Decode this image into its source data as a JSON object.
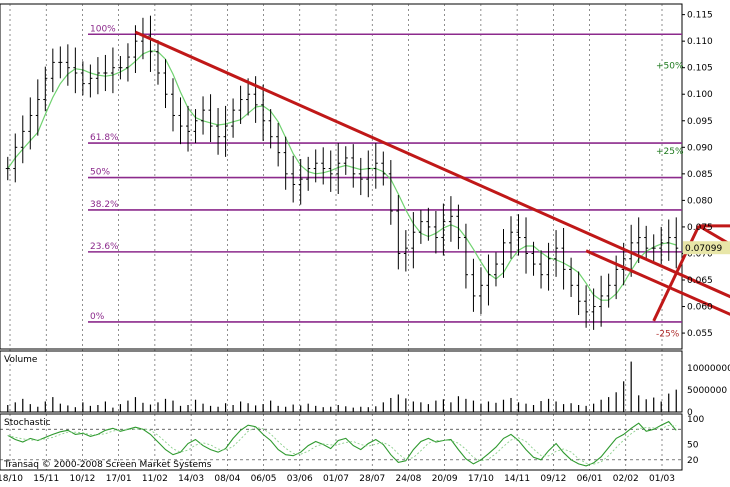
{
  "chart_data": [
    {
      "type": "ohlc",
      "panel": "price",
      "y_ticks": [
        "0.055",
        "0.060",
        "0.065",
        "0.070",
        "0.075",
        "0.080",
        "0.085",
        "0.090",
        "0.095",
        "0.100",
        "0.105",
        "0.110",
        "0.115"
      ],
      "ylim": [
        0.052,
        0.117
      ],
      "last_price_label": "0.07099",
      "last_price": 0.07099,
      "fib_levels": [
        {
          "label": "100%",
          "value": 0.1113
        },
        {
          "label": "61.8%",
          "value": 0.0908
        },
        {
          "label": "50%",
          "value": 0.0843
        },
        {
          "label": "38.2%",
          "value": 0.0782
        },
        {
          "label": "23.6%",
          "value": 0.0703
        },
        {
          "label": "0%",
          "value": 0.0571
        }
      ],
      "target_levels": [
        {
          "label": "+50%",
          "value": 0.1054
        },
        {
          "label": "+25%",
          "value": 0.0893
        },
        {
          "label": "-25%",
          "value": 0.0549
        }
      ],
      "trendlines": [
        {
          "from": [
            17,
            0.1117
          ],
          "to": [
            102,
            0.0582
          ]
        },
        {
          "from": [
            77,
            0.0705
          ],
          "to": [
            98,
            0.0574
          ]
        },
        {
          "from": [
            86,
            0.0573
          ],
          "to": [
            92,
            0.0752
          ]
        },
        {
          "from": [
            92,
            0.0752
          ],
          "to": [
            98,
            0.0752
          ]
        },
        {
          "from": [
            92,
            0.0752
          ],
          "to": [
            98,
            0.0702
          ]
        }
      ],
      "price_series": [
        0.086,
        0.09,
        0.093,
        0.096,
        0.099,
        0.103,
        0.106,
        0.106,
        0.105,
        0.104,
        0.102,
        0.103,
        0.104,
        0.104,
        0.105,
        0.105,
        0.107,
        0.11,
        0.111,
        0.108,
        0.104,
        0.1,
        0.096,
        0.094,
        0.093,
        0.095,
        0.097,
        0.094,
        0.092,
        0.094,
        0.097,
        0.099,
        0.1,
        0.098,
        0.095,
        0.092,
        0.089,
        0.085,
        0.083,
        0.084,
        0.086,
        0.087,
        0.086,
        0.085,
        0.087,
        0.088,
        0.085,
        0.084,
        0.086,
        0.087,
        0.085,
        0.078,
        0.07,
        0.071,
        0.074,
        0.076,
        0.075,
        0.073,
        0.076,
        0.077,
        0.073,
        0.066,
        0.062,
        0.064,
        0.066,
        0.068,
        0.072,
        0.074,
        0.073,
        0.07,
        0.068,
        0.066,
        0.069,
        0.071,
        0.067,
        0.064,
        0.061,
        0.059,
        0.06,
        0.062,
        0.064,
        0.067,
        0.069,
        0.072,
        0.073,
        0.071,
        0.071,
        0.072,
        0.073,
        0.071
      ]
    },
    {
      "type": "bar",
      "panel": "volume",
      "title": "Volume",
      "y_ticks": [
        "0",
        "5000000",
        "10000000"
      ],
      "ylim": [
        0,
        13000000
      ],
      "values": [
        1.6,
        2.2,
        3.0,
        1.8,
        1.2,
        2.4,
        3.4,
        1.9,
        1.5,
        1.1,
        2.2,
        1.4,
        1.6,
        2.4,
        1.0,
        1.8,
        2.6,
        3.4,
        2.1,
        1.7,
        2.2,
        3.0,
        2.6,
        1.4,
        1.6,
        2.8,
        1.9,
        1.4,
        1.2,
        2.0,
        1.6,
        2.4,
        2.0,
        1.5,
        1.8,
        2.6,
        1.4,
        1.2,
        1.7,
        1.5,
        1.9,
        1.4,
        1.1,
        1.2,
        1.6,
        1.3,
        1.0,
        1.2,
        1.1,
        1.3,
        2.2,
        3.2,
        4.0,
        3.1,
        2.4,
        2.2,
        1.8,
        2.6,
        2.9,
        2.2,
        3.6,
        3.0,
        2.6,
        1.9,
        2.4,
        2.1,
        2.8,
        3.2,
        2.2,
        1.9,
        1.6,
        2.5,
        3.0,
        2.4,
        1.8,
        2.0,
        1.6,
        1.4,
        1.9,
        2.8,
        3.4,
        4.5,
        7.0,
        11.5,
        3.8,
        2.9,
        3.3,
        2.4,
        4.2,
        5.1
      ]
    },
    {
      "type": "line",
      "panel": "stochastic",
      "title": "Stochastic",
      "y_ticks": [
        "20",
        "50",
        "100"
      ],
      "ylim": [
        0,
        110
      ],
      "values": [
        68,
        60,
        55,
        62,
        58,
        64,
        70,
        75,
        78,
        70,
        72,
        66,
        70,
        78,
        82,
        76,
        80,
        84,
        80,
        70,
        55,
        40,
        30,
        35,
        52,
        60,
        48,
        40,
        35,
        42,
        62,
        78,
        88,
        85,
        70,
        58,
        40,
        30,
        28,
        35,
        48,
        56,
        50,
        42,
        58,
        62,
        48,
        40,
        52,
        60,
        50,
        30,
        15,
        18,
        40,
        56,
        62,
        55,
        58,
        60,
        40,
        22,
        12,
        20,
        32,
        45,
        62,
        70,
        58,
        40,
        25,
        20,
        38,
        52,
        34,
        20,
        12,
        8,
        14,
        26,
        44,
        62,
        70,
        82,
        92,
        76,
        80,
        88,
        95,
        78
      ]
    }
  ],
  "x_labels": [
    "18/10",
    "15/11",
    "10/12",
    "17/01",
    "11/02",
    "14/03",
    "08/04",
    "06/05",
    "03/06",
    "01/07",
    "28/07",
    "24/08",
    "20/09",
    "17/10",
    "14/11",
    "09/12",
    "06/01",
    "02/02",
    "01/03"
  ],
  "footer": "Transaq © 2000-2008 Screen Market Systems",
  "colors": {
    "ohlc": "#000000",
    "moving_average": "#6fd26f",
    "fib_line": "#8c2a8c",
    "trendline": "#c01818",
    "target_text_green": "#1f7a1f",
    "target_text_red": "#b03030",
    "stochastic": "#2f9a2f",
    "last_price_bg": "#e8e6a8"
  }
}
